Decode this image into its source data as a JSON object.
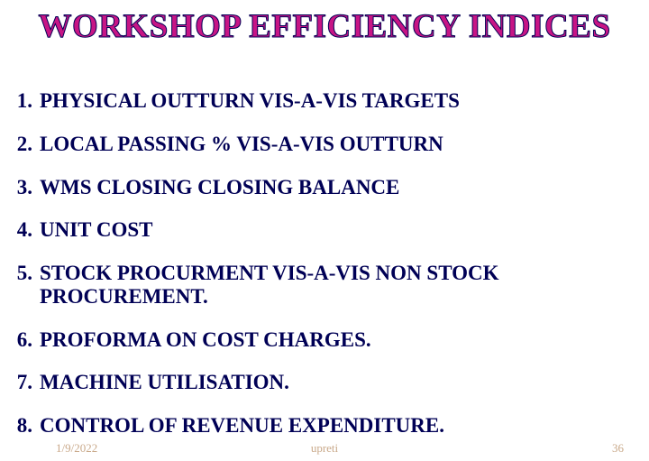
{
  "title": "WORKSHOP EFFICIENCY INDICES",
  "items": [
    {
      "num": "1.",
      "text": "PHYSICAL OUTTURN VIS-A-VIS TARGETS"
    },
    {
      "num": "2.",
      "text": "LOCAL PASSING % VIS-A-VIS OUTTURN"
    },
    {
      "num": "3.",
      "text": "WMS CLOSING CLOSING BALANCE"
    },
    {
      "num": "4.",
      "text": "UNIT COST"
    },
    {
      "num": "5.",
      "text": "STOCK PROCURMENT VIS-A-VIS NON STOCK PROCUREMENT."
    },
    {
      "num": "6.",
      "text": "PROFORMA ON COST CHARGES."
    },
    {
      "num": "7.",
      "text": "MACHINE UTILISATION."
    },
    {
      "num": "8.",
      "text": "CONTROL OF REVENUE EXPENDITURE."
    }
  ],
  "footer": {
    "date": "1/9/2022",
    "author": "upreti",
    "page": "36"
  }
}
